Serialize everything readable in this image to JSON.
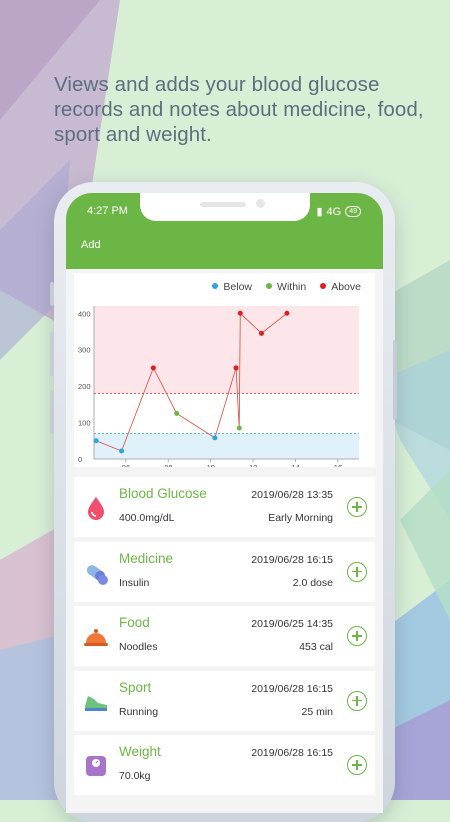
{
  "headline": "Views and adds your blood glucose records and notes about medicine, food, sport and weight.",
  "status": {
    "time": "4:27 PM",
    "network": "4G",
    "battery": "49"
  },
  "toolbar": {
    "add_label": "Add"
  },
  "chart_data": {
    "type": "line",
    "legend": [
      "Below",
      "Within",
      "Above"
    ],
    "legend_colors": [
      "#29a6e0",
      "#6cb645",
      "#e02020"
    ],
    "x_ticks": [
      "06",
      "08",
      "10",
      "12",
      "14",
      "16"
    ],
    "y_ticks": [
      "0",
      "100",
      "200",
      "300",
      "400"
    ],
    "xlim": [
      4.5,
      17
    ],
    "ylim": [
      0,
      420
    ],
    "ranges": {
      "below_max": 70,
      "above_min": 180
    },
    "points": [
      {
        "x": 4.6,
        "y": 50,
        "status": "Below"
      },
      {
        "x": 5.8,
        "y": 22,
        "status": "Below"
      },
      {
        "x": 7.3,
        "y": 250,
        "status": "Above"
      },
      {
        "x": 8.4,
        "y": 125,
        "status": "Within"
      },
      {
        "x": 10.2,
        "y": 58,
        "status": "Below"
      },
      {
        "x": 11.2,
        "y": 250,
        "status": "Above"
      },
      {
        "x": 11.35,
        "y": 85,
        "status": "Within"
      },
      {
        "x": 11.4,
        "y": 400,
        "status": "Above"
      },
      {
        "x": 12.4,
        "y": 345,
        "status": "Above"
      },
      {
        "x": 13.6,
        "y": 400,
        "status": "Above"
      }
    ]
  },
  "records": [
    {
      "title": "Blood Glucose",
      "date": "2019/06/28 13:35",
      "value": "400.0mg/dL",
      "note": "Early Morning",
      "icon": "blood-drop-icon"
    },
    {
      "title": "Medicine",
      "date": "2019/06/28 16:15",
      "value": "Insulin",
      "note": "2.0 dose",
      "icon": "pill-icon"
    },
    {
      "title": "Food",
      "date": "2019/06/25 14:35",
      "value": "Noodles",
      "note": "453 cal",
      "icon": "food-cloche-icon"
    },
    {
      "title": "Sport",
      "date": "2019/06/28 16:15",
      "value": "Running",
      "note": "25 min",
      "icon": "sneaker-icon"
    },
    {
      "title": "Weight",
      "date": "2019/06/28 16:15",
      "value": "70.0kg",
      "note": "",
      "icon": "scale-icon"
    }
  ]
}
